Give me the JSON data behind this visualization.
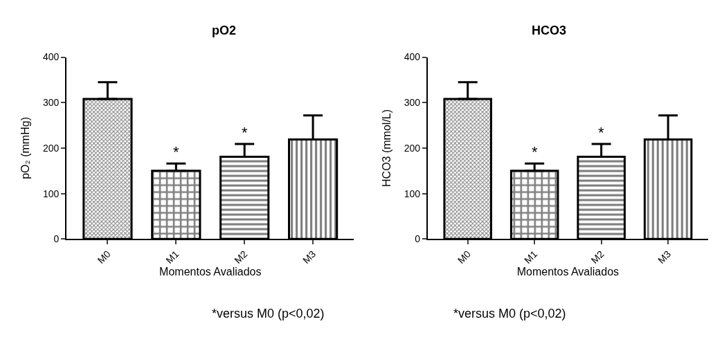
{
  "chart_data": [
    {
      "type": "bar",
      "title": "pO2",
      "ylabel": "pO₂ (mmHg)",
      "xlabel": "Momentos Avaliados",
      "categories": [
        "M0",
        "M1",
        "M2",
        "M3"
      ],
      "values": [
        308,
        150,
        181,
        219
      ],
      "errors": [
        [
          308,
          345
        ],
        [
          150,
          166
        ],
        [
          181,
          209
        ],
        [
          219,
          272
        ]
      ],
      "color": "#000000",
      "ylim": [
        0,
        400
      ],
      "yticks": [
        0,
        100,
        200,
        300,
        400
      ],
      "annotations": [
        {
          "text": "*",
          "x": "M1",
          "y": 166
        },
        {
          "text": "*",
          "x": "M2",
          "y": 209
        },
        "*versus M0 (p<0,02)"
      ]
    },
    {
      "type": "bar",
      "title": "HCO3",
      "ylabel": "HCO3 (mmol/L)",
      "xlabel": "Momentos Avaliados",
      "categories": [
        "M0",
        "M1",
        "M2",
        "M3"
      ],
      "values": [
        308,
        150,
        181,
        219
      ],
      "errors": [
        [
          308,
          345
        ],
        [
          150,
          166
        ],
        [
          181,
          209
        ],
        [
          219,
          272
        ]
      ],
      "color": "#000000",
      "ylim": [
        0,
        400
      ],
      "yticks": [
        0,
        100,
        200,
        300,
        400
      ],
      "annotations": [
        {
          "text": "*",
          "x": "M1",
          "y": 166
        },
        {
          "text": "*",
          "x": "M2",
          "y": 209
        },
        "*versus M0 (p<0,02)"
      ]
    }
  ]
}
